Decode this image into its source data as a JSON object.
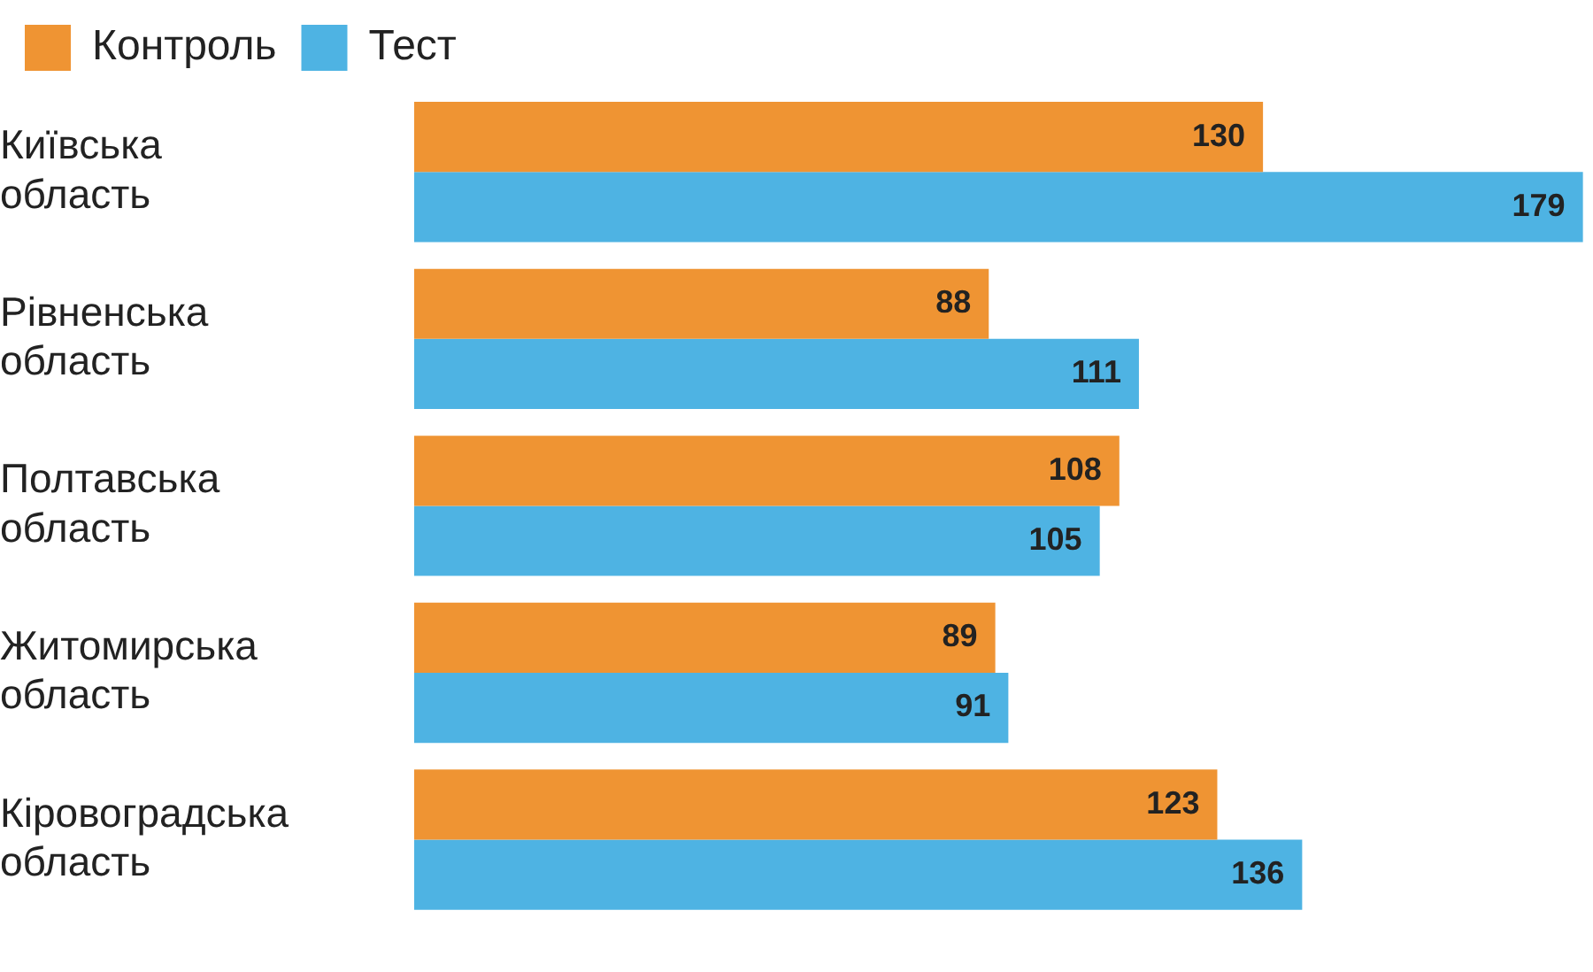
{
  "chart_data": {
    "type": "bar",
    "orientation": "horizontal",
    "categories": [
      "Київська область",
      "Рівненська область",
      "Полтавська область",
      "Житомирська область",
      "Кіровоградська область"
    ],
    "series": [
      {
        "name": "Контроль",
        "color": "#ef9433",
        "values": [
          130,
          88,
          108,
          89,
          123
        ]
      },
      {
        "name": "Тест",
        "color": "#4eb3e3",
        "values": [
          179,
          111,
          105,
          91,
          136
        ]
      }
    ],
    "data_labels": true,
    "legend": "top left",
    "grid": false
  }
}
